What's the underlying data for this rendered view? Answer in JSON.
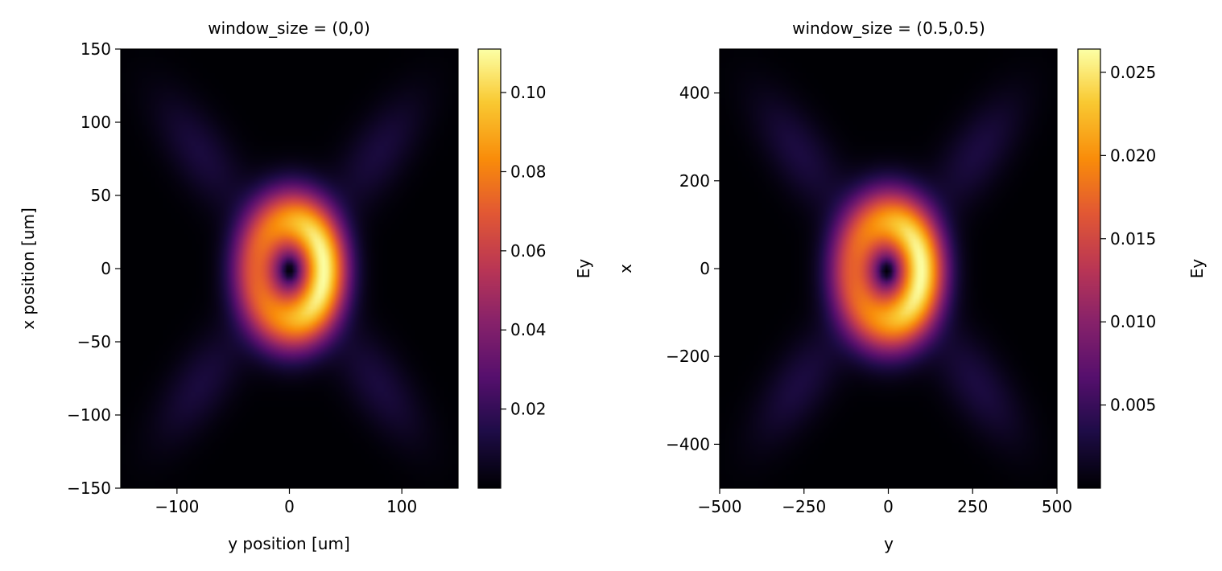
{
  "chart_data": [
    {
      "type": "heatmap",
      "title": "window_size = (0,0)",
      "xlabel": "y position [um]",
      "ylabel": "x position [um]",
      "xlim": [
        -150,
        150
      ],
      "ylim": [
        -150,
        150
      ],
      "x_ticks": [
        -100,
        0,
        100
      ],
      "x_tick_labels": [
        "−100",
        "0",
        "100"
      ],
      "y_ticks": [
        150,
        100,
        50,
        0,
        -50,
        -100,
        -150
      ],
      "y_tick_labels": [
        "150",
        "100",
        "50",
        "0",
        "−50",
        "−100",
        "−150"
      ],
      "colormap": "inferno",
      "colorbar": {
        "label": "Ey",
        "min": 0.0,
        "max": 0.111,
        "ticks": [
          0.02,
          0.04,
          0.06,
          0.08,
          0.1
        ],
        "tick_labels": [
          "0.02",
          "0.04",
          "0.06",
          "0.08",
          "0.10"
        ]
      },
      "field": {
        "description_values": "Ey magnitude, vortex ring pattern",
        "ring_center": [
          0,
          -1
        ],
        "ring_radius": 30,
        "ring_width": 22,
        "peak_value": 0.111,
        "peak_location": [
          30,
          -2
        ],
        "null_at_center": true,
        "side_lobe_value": 0.012
      }
    },
    {
      "type": "heatmap",
      "title": "window_size = (0.5,0.5)",
      "xlabel": "y",
      "ylabel": "x",
      "xlim": [
        -500,
        500
      ],
      "ylim": [
        -500,
        500
      ],
      "x_ticks": [
        -500,
        -250,
        0,
        250,
        500
      ],
      "x_tick_labels": [
        "−500",
        "−250",
        "0",
        "250",
        "500"
      ],
      "y_ticks": [
        400,
        200,
        0,
        -200,
        -400
      ],
      "y_tick_labels": [
        "400",
        "200",
        "0",
        "−200",
        "−400"
      ],
      "colormap": "inferno",
      "colorbar": {
        "label": "Ey",
        "min": 0.0,
        "max": 0.0264,
        "ticks": [
          0.005,
          0.01,
          0.015,
          0.02,
          0.025
        ],
        "tick_labels": [
          "0.005",
          "0.010",
          "0.015",
          "0.020",
          "0.025"
        ]
      },
      "field": {
        "description_values": "Ey magnitude, vortex ring pattern",
        "ring_center": [
          -5,
          -5
        ],
        "ring_radius": 100,
        "ring_width": 75,
        "peak_value": 0.0264,
        "peak_location": [
          110,
          -5
        ],
        "null_at_center": true,
        "side_lobe_value": 0.003
      }
    }
  ]
}
